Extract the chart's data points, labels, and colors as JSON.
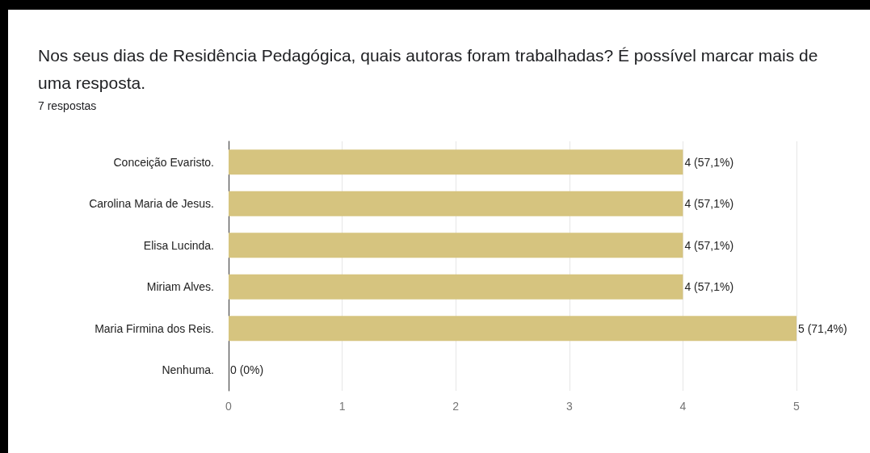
{
  "chart_data": {
    "type": "bar",
    "orientation": "horizontal",
    "title": "Nos seus dias de Residência Pedagógica, quais autoras foram trabalhadas? É possível marcar mais de uma resposta.",
    "subtitle": "7 respostas",
    "categories": [
      "Conceição Evaristo.",
      "Carolina Maria de Jesus.",
      "Elisa Lucinda.",
      "Miriam Alves.",
      "Maria Firmina dos Reis.",
      "Nenhuma."
    ],
    "values": [
      4,
      4,
      4,
      4,
      5,
      0
    ],
    "value_labels": [
      "4 (57,1%)",
      "4 (57,1%)",
      "4 (57,1%)",
      "4 (57,1%)",
      "5 (71,4%)",
      "0 (0%)"
    ],
    "color": "#d6c47f",
    "xlim": [
      0,
      5
    ],
    "xticks": [
      0,
      1,
      2,
      3,
      4,
      5
    ],
    "grid": "x"
  }
}
